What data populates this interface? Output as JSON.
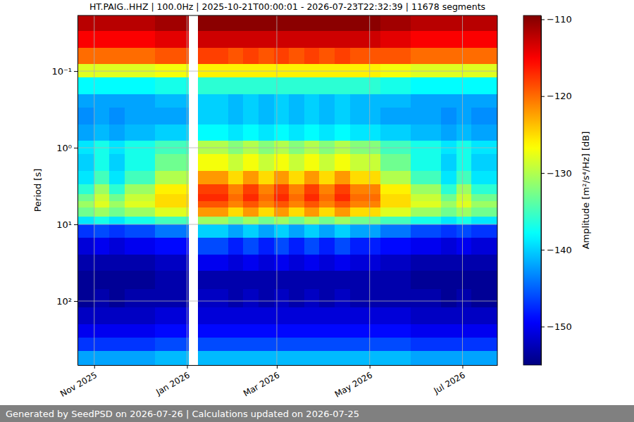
{
  "chart_data": {
    "type": "heatmap",
    "title": "HT.PAIG..HHZ | 100.0Hz | 2025-10-21T00:00:01 - 2026-07-23T22:32:39 | 11678 segments",
    "ylabel": "Period [s]",
    "footer": "Generated by SeedPSD on 2026-07-26 | Calculations updated on 2026-07-25",
    "log": "y",
    "grid": true,
    "xlim": [
      "2025-10-21T00:00:01",
      "2026-07-23T22:32:39"
    ],
    "xticks": [
      {
        "value": "2025-11",
        "label": "Nov 2025"
      },
      {
        "value": "2026-01",
        "label": "Jan 2026"
      },
      {
        "value": "2026-03",
        "label": "Mar 2026"
      },
      {
        "value": "2026-05",
        "label": "May 2026"
      },
      {
        "value": "2026-07",
        "label": "Jul 2026"
      }
    ],
    "ylim": [
      0.0188,
      684
    ],
    "yticks": [
      {
        "value": 0.1,
        "label": "10⁻¹"
      },
      {
        "value": 1,
        "label": "10⁰"
      },
      {
        "value": 10,
        "label": "10¹"
      },
      {
        "value": 100,
        "label": "10²"
      }
    ],
    "x": [
      "2025-10-21T00:00:01",
      "2025-11-01T00:00:00",
      "2025-11-11T00:00:00",
      "2025-11-21T00:00:00",
      "2025-12-01T00:00:00",
      "2025-12-11T00:00:00",
      "2025-12-21T00:00:00",
      "2026-01-02T00:00:00",
      "2026-01-08T00:00:00",
      "2026-01-18T00:00:00",
      "2026-01-28T00:00:00",
      "2026-02-07T00:00:00",
      "2026-02-17T00:00:00",
      "2026-02-27T00:00:00",
      "2026-03-09T00:00:00",
      "2026-03-19T00:00:00",
      "2026-03-29T00:00:00",
      "2026-04-08T00:00:00",
      "2026-04-18T00:00:00",
      "2026-04-28T00:00:00",
      "2026-05-08T00:00:00",
      "2026-05-18T00:00:00",
      "2026-05-28T00:00:00",
      "2026-06-07T00:00:00",
      "2026-06-17T00:00:00",
      "2026-06-27T00:00:00",
      "2026-07-07T00:00:00",
      "2026-07-17T00:00:00",
      "2026-07-23T22:32:39"
    ],
    "y": [
      0.0188,
      0.03,
      0.05,
      0.08,
      0.12,
      0.2,
      0.3,
      0.5,
      0.8,
      1.2,
      2,
      3,
      4,
      5,
      6,
      8,
      10,
      15,
      25,
      40,
      70,
      120,
      200,
      300,
      450,
      684
    ],
    "values": [
      [
        -112,
        -112,
        -112,
        -112,
        -112,
        -111,
        -111,
        null,
        -110,
        -110,
        -110,
        -110,
        -110,
        -110,
        -110,
        -110,
        -110,
        -110,
        -110,
        -110,
        -111,
        -111,
        -112,
        -112,
        -112,
        -112,
        -112,
        -112
      ],
      [
        -115,
        -115,
        -115,
        -115,
        -115,
        -114,
        -114,
        null,
        -113,
        -113,
        -113,
        -113,
        -113,
        -113,
        -113,
        -113,
        -113,
        -113,
        -113,
        -113,
        -114,
        -114,
        -115,
        -115,
        -115,
        -115,
        -115,
        -115
      ],
      [
        -120,
        -120,
        -120,
        -120,
        -120,
        -119,
        -119,
        null,
        -118,
        -118,
        -119,
        -118,
        -119,
        -118,
        -119,
        -118,
        -119,
        -118,
        -119,
        -119,
        -119,
        -119,
        -120,
        -120,
        -120,
        -120,
        -120,
        -120
      ],
      [
        -128,
        -128,
        -128,
        -128,
        -128,
        -127,
        -127,
        null,
        -126,
        -126,
        -126,
        -126,
        -126,
        -126,
        -126,
        -126,
        -126,
        -126,
        -126,
        -126,
        -127,
        -127,
        -128,
        -128,
        -128,
        -128,
        -128,
        -128
      ],
      [
        -138,
        -138,
        -138,
        -138,
        -138,
        -137,
        -137,
        null,
        -136,
        -136,
        -136,
        -136,
        -136,
        -136,
        -136,
        -136,
        -136,
        -136,
        -136,
        -136,
        -137,
        -137,
        -138,
        -138,
        -138,
        -138,
        -138,
        -138
      ],
      [
        -142,
        -142,
        -142,
        -142,
        -142,
        -141,
        -141,
        null,
        -140,
        -140,
        -141,
        -140,
        -141,
        -140,
        -141,
        -140,
        -141,
        -140,
        -141,
        -141,
        -141,
        -141,
        -142,
        -142,
        -142,
        -142,
        -142,
        -142
      ],
      [
        -143,
        -142,
        -143,
        -142,
        -142,
        -142,
        -142,
        null,
        -140,
        -140,
        -141,
        -140,
        -141,
        -140,
        -141,
        -140,
        -141,
        -140,
        -141,
        -141,
        -142,
        -142,
        -142,
        -142,
        -143,
        -142,
        -143,
        -143
      ],
      [
        -142,
        -141,
        -142,
        -141,
        -141,
        -140,
        -140,
        null,
        -138,
        -138,
        -139,
        -138,
        -139,
        -138,
        -139,
        -138,
        -139,
        -138,
        -139,
        -139,
        -140,
        -140,
        -141,
        -141,
        -142,
        -141,
        -142,
        -142
      ],
      [
        -139,
        -137,
        -139,
        -137,
        -137,
        -135,
        -135,
        null,
        -130,
        -130,
        -132,
        -130,
        -132,
        -130,
        -132,
        -130,
        -132,
        -130,
        -132,
        -132,
        -135,
        -135,
        -137,
        -137,
        -139,
        -137,
        -139,
        -139
      ],
      [
        -140,
        -137,
        -140,
        -137,
        -137,
        -133,
        -133,
        null,
        -127,
        -127,
        -129,
        -127,
        -129,
        -127,
        -129,
        -127,
        -129,
        -127,
        -129,
        -129,
        -133,
        -133,
        -137,
        -137,
        -140,
        -137,
        -140,
        -140
      ],
      [
        -139,
        -135,
        -139,
        -135,
        -135,
        -130,
        -130,
        null,
        -122,
        -122,
        -125,
        -122,
        -125,
        -122,
        -125,
        -122,
        -125,
        -122,
        -125,
        -125,
        -130,
        -130,
        -135,
        -135,
        -139,
        -135,
        -139,
        -139
      ],
      [
        -136,
        -131,
        -136,
        -131,
        -131,
        -126,
        -126,
        null,
        -118,
        -118,
        -121,
        -118,
        -121,
        -118,
        -121,
        -118,
        -121,
        -118,
        -121,
        -121,
        -126,
        -126,
        -131,
        -131,
        -136,
        -131,
        -136,
        -136
      ],
      [
        -133,
        -129,
        -133,
        -129,
        -129,
        -125,
        -125,
        null,
        -117,
        -117,
        -120,
        -117,
        -120,
        -117,
        -120,
        -117,
        -120,
        -117,
        -120,
        -120,
        -125,
        -125,
        -129,
        -129,
        -133,
        -129,
        -133,
        -133
      ],
      [
        -131,
        -128,
        -131,
        -128,
        -128,
        -125,
        -125,
        null,
        -119,
        -119,
        -121,
        -119,
        -121,
        -119,
        -121,
        -119,
        -121,
        -119,
        -121,
        -121,
        -125,
        -125,
        -128,
        -128,
        -131,
        -128,
        -131,
        -131
      ],
      [
        -133,
        -131,
        -133,
        -131,
        -131,
        -128,
        -128,
        null,
        -122,
        -122,
        -125,
        -122,
        -125,
        -122,
        -125,
        -122,
        -125,
        -122,
        -125,
        -125,
        -128,
        -128,
        -131,
        -131,
        -133,
        -131,
        -133,
        -133
      ],
      [
        -139,
        -137,
        -139,
        -137,
        -137,
        -135,
        -135,
        null,
        -131,
        -131,
        -133,
        -131,
        -133,
        -131,
        -133,
        -131,
        -133,
        -131,
        -133,
        -133,
        -135,
        -135,
        -137,
        -137,
        -139,
        -137,
        -139,
        -139
      ],
      [
        -147,
        -146,
        -147,
        -146,
        -146,
        -144,
        -144,
        null,
        -140,
        -140,
        -142,
        -140,
        -142,
        -140,
        -142,
        -140,
        -142,
        -140,
        -142,
        -142,
        -144,
        -144,
        -146,
        -146,
        -147,
        -146,
        -147,
        -147
      ],
      [
        -151,
        -150,
        -151,
        -150,
        -150,
        -149,
        -149,
        null,
        -146,
        -146,
        -148,
        -146,
        -148,
        -146,
        -148,
        -146,
        -148,
        -146,
        -148,
        -148,
        -149,
        -149,
        -150,
        -150,
        -151,
        -150,
        -151,
        -151
      ],
      [
        -153,
        -153,
        -153,
        -153,
        -153,
        -152,
        -152,
        null,
        -150,
        -150,
        -151,
        -150,
        -151,
        -150,
        -151,
        -150,
        -151,
        -150,
        -151,
        -151,
        -152,
        -152,
        -153,
        -153,
        -153,
        -153,
        -153,
        -153
      ],
      [
        -154,
        -154,
        -154,
        -154,
        -154,
        -153,
        -153,
        null,
        -153,
        -153,
        -153,
        -153,
        -153,
        -153,
        -153,
        -153,
        -153,
        -153,
        -153,
        -153,
        -153,
        -153,
        -154,
        -154,
        -154,
        -154,
        -154,
        -154
      ],
      [
        -154,
        -153,
        -154,
        -153,
        -153,
        -153,
        -153,
        null,
        -152,
        -152,
        -153,
        -152,
        -153,
        -152,
        -153,
        -152,
        -153,
        -152,
        -153,
        -153,
        -153,
        -153,
        -153,
        -153,
        -154,
        -153,
        -154,
        -154
      ],
      [
        -152,
        -152,
        -152,
        -152,
        -152,
        -151,
        -151,
        null,
        -151,
        -151,
        -151,
        -151,
        -151,
        -151,
        -151,
        -151,
        -151,
        -151,
        -151,
        -151,
        -151,
        -151,
        -152,
        -152,
        -152,
        -152,
        -152,
        -152
      ],
      [
        -150,
        -150,
        -150,
        -150,
        -150,
        -149,
        -149,
        null,
        -149,
        -149,
        -149,
        -149,
        -149,
        -149,
        -149,
        -149,
        -149,
        -149,
        -149,
        -149,
        -149,
        -149,
        -150,
        -150,
        -150,
        -150,
        -150,
        -150
      ],
      [
        -147,
        -147,
        -147,
        -147,
        -147,
        -146,
        -146,
        null,
        -146,
        -146,
        -146,
        -146,
        -146,
        -146,
        -146,
        -146,
        -146,
        -146,
        -146,
        -146,
        -146,
        -146,
        -147,
        -147,
        -147,
        -147,
        -147,
        -147
      ],
      [
        -142,
        -142,
        -142,
        -142,
        -142,
        -141,
        -141,
        null,
        -141,
        -141,
        -141,
        -141,
        -141,
        -141,
        -141,
        -141,
        -141,
        -141,
        -141,
        -141,
        -141,
        -141,
        -142,
        -142,
        -142,
        -142,
        -142,
        -142
      ]
    ],
    "colorbar": {
      "label": "Amplitude [m²/s⁴/Hz] [dB]",
      "range": [
        -155,
        -109.5
      ],
      "ticks": [
        {
          "value": -110,
          "label": "−110"
        },
        {
          "value": -120,
          "label": "−120"
        },
        {
          "value": -130,
          "label": "−130"
        },
        {
          "value": -140,
          "label": "−140"
        },
        {
          "value": -150,
          "label": "−150"
        }
      ]
    }
  }
}
